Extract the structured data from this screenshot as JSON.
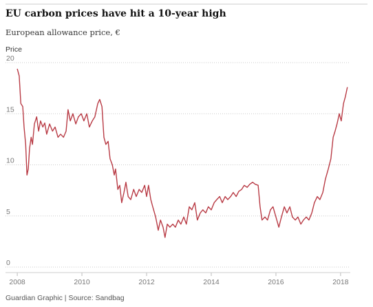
{
  "chart_data": {
    "type": "line",
    "title": "EU carbon prices have hit a 10-year high",
    "subtitle": "European allowance price, €",
    "y_label": "Price",
    "source": "Guardian Graphic | Source: Sandbag",
    "color": "#b83a44",
    "grid": true,
    "xlim": [
      2007.7,
      2018.3
    ],
    "xticks": [
      2008,
      2010,
      2012,
      2014,
      2016,
      2018
    ],
    "ylim": [
      0,
      20
    ],
    "yticks": [
      0,
      5,
      10,
      15,
      20
    ],
    "x": [
      2008.0,
      2008.06,
      2008.11,
      2008.17,
      2008.21,
      2008.26,
      2008.3,
      2008.34,
      2008.38,
      2008.43,
      2008.47,
      2008.53,
      2008.6,
      2008.66,
      2008.72,
      2008.79,
      2008.85,
      2008.91,
      2009.0,
      2009.09,
      2009.17,
      2009.26,
      2009.34,
      2009.43,
      2009.51,
      2009.57,
      2009.64,
      2009.72,
      2009.81,
      2009.89,
      2009.98,
      2010.06,
      2010.15,
      2010.23,
      2010.32,
      2010.4,
      2010.49,
      2010.55,
      2010.62,
      2010.68,
      2010.74,
      2010.81,
      2010.87,
      2010.94,
      2011.0,
      2011.04,
      2011.11,
      2011.17,
      2011.23,
      2011.3,
      2011.36,
      2011.43,
      2011.51,
      2011.6,
      2011.68,
      2011.77,
      2011.85,
      2011.94,
      2012.0,
      2012.06,
      2012.13,
      2012.19,
      2012.28,
      2012.36,
      2012.43,
      2012.51,
      2012.57,
      2012.64,
      2012.72,
      2012.81,
      2012.89,
      2012.98,
      2013.06,
      2013.15,
      2013.23,
      2013.32,
      2013.4,
      2013.49,
      2013.57,
      2013.66,
      2013.74,
      2013.83,
      2013.91,
      2014.0,
      2014.09,
      2014.17,
      2014.26,
      2014.34,
      2014.43,
      2014.51,
      2014.6,
      2014.68,
      2014.77,
      2014.85,
      2014.94,
      2015.02,
      2015.11,
      2015.19,
      2015.28,
      2015.36,
      2015.45,
      2015.51,
      2015.57,
      2015.66,
      2015.74,
      2015.83,
      2015.91,
      2016.0,
      2016.09,
      2016.17,
      2016.26,
      2016.34,
      2016.43,
      2016.51,
      2016.6,
      2016.68,
      2016.77,
      2016.85,
      2016.94,
      2017.02,
      2017.11,
      2017.19,
      2017.28,
      2017.36,
      2017.45,
      2017.53,
      2017.62,
      2017.7,
      2017.77,
      2017.83,
      2017.89,
      2017.96,
      2018.02,
      2018.09,
      2018.15,
      2018.21
    ],
    "values": [
      19.4,
      18.7,
      16.0,
      15.7,
      13.7,
      12.0,
      9.0,
      9.6,
      11.6,
      12.7,
      12.0,
      14.0,
      14.7,
      13.3,
      14.3,
      13.7,
      14.1,
      13.0,
      14.0,
      13.3,
      13.7,
      12.7,
      13.0,
      12.7,
      13.3,
      15.4,
      14.3,
      15.0,
      14.0,
      14.7,
      15.0,
      14.3,
      15.0,
      13.7,
      14.3,
      14.7,
      16.0,
      16.4,
      15.7,
      12.7,
      12.0,
      12.3,
      10.6,
      10.0,
      9.0,
      9.6,
      7.6,
      8.0,
      6.3,
      7.3,
      8.3,
      6.9,
      6.6,
      7.6,
      6.9,
      7.6,
      7.3,
      8.0,
      6.9,
      8.0,
      6.6,
      5.9,
      4.9,
      3.6,
      4.6,
      3.9,
      2.9,
      4.2,
      3.9,
      4.2,
      3.9,
      4.6,
      4.2,
      4.9,
      4.2,
      5.9,
      5.6,
      6.3,
      4.6,
      5.3,
      5.6,
      5.3,
      5.9,
      5.6,
      6.3,
      6.6,
      6.9,
      6.3,
      6.9,
      6.6,
      6.9,
      7.3,
      6.9,
      7.4,
      7.6,
      8.0,
      7.8,
      8.1,
      8.3,
      8.1,
      8.0,
      5.9,
      4.6,
      4.9,
      4.6,
      5.6,
      5.9,
      4.9,
      3.9,
      4.9,
      5.9,
      5.3,
      5.9,
      4.9,
      4.6,
      4.9,
      4.2,
      4.6,
      4.9,
      4.6,
      5.3,
      6.3,
      6.9,
      6.6,
      7.3,
      8.6,
      9.6,
      10.6,
      12.7,
      13.3,
      14.0,
      15.0,
      14.3,
      16.0,
      16.7,
      17.6
    ]
  }
}
